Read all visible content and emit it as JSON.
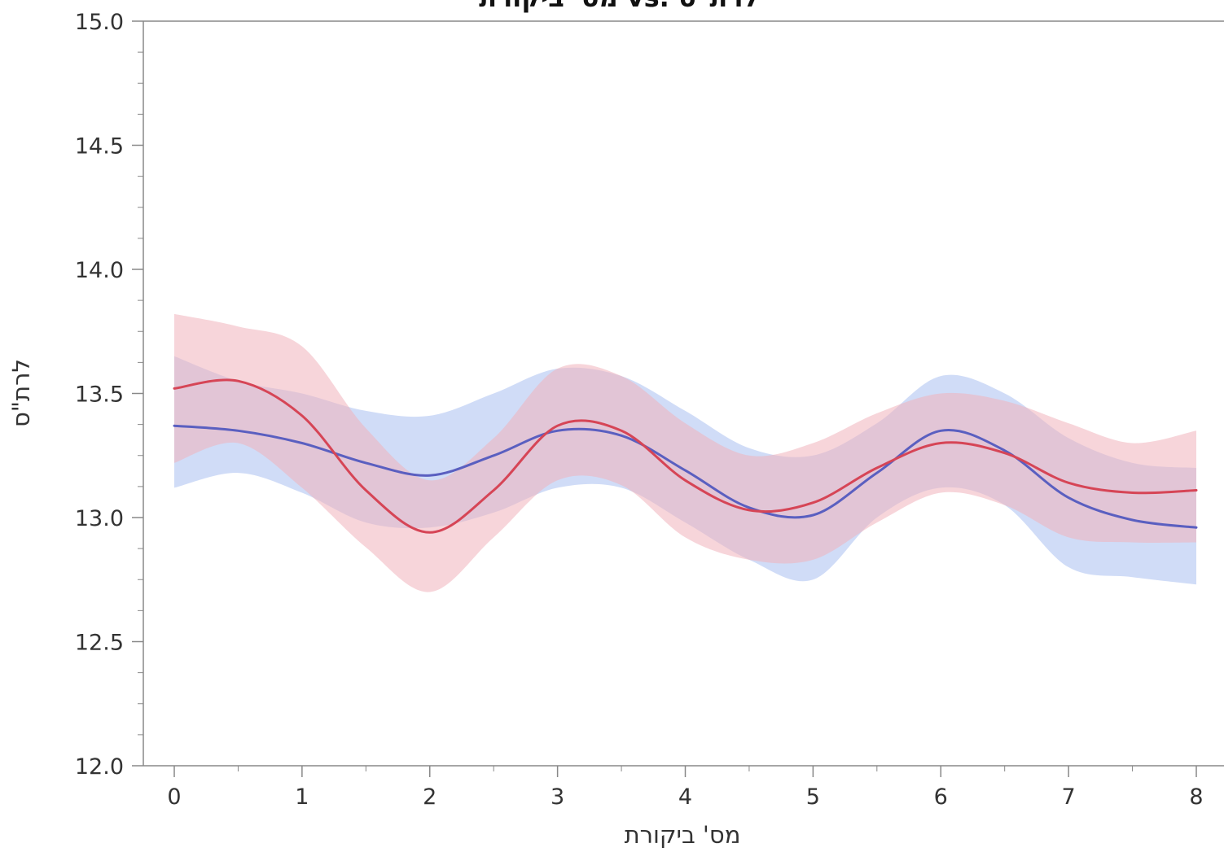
{
  "chart_data": {
    "type": "line",
    "title": "מס' ביקורת vs. לרת\"ס",
    "xlabel": "מס' ביקורת",
    "ylabel": "לרת\"ס",
    "xlim": [
      -0.25,
      8.2
    ],
    "ylim": [
      12.0,
      15.0
    ],
    "x_ticks": [
      0,
      1,
      2,
      3,
      4,
      5,
      6,
      7,
      8
    ],
    "y_ticks": [
      12.0,
      12.5,
      13.0,
      13.5,
      14.0,
      14.5,
      15.0
    ],
    "y_tick_labels": [
      "12.0",
      "12.5",
      "13.0",
      "13.5",
      "14.0",
      "14.5",
      "15.0"
    ],
    "grid": false,
    "series": [
      {
        "color": "#5a5fc0",
        "band_color": "#a9bff0",
        "x": [
          0,
          0.5,
          1,
          1.5,
          2,
          2.5,
          3,
          3.5,
          4,
          4.5,
          5,
          5.5,
          6,
          6.5,
          7,
          7.5,
          8
        ],
        "values": [
          13.37,
          13.35,
          13.3,
          13.22,
          13.17,
          13.25,
          13.35,
          13.33,
          13.19,
          13.04,
          13.01,
          13.18,
          13.35,
          13.27,
          13.08,
          12.99,
          12.96
        ],
        "lower": [
          13.12,
          13.18,
          13.1,
          12.98,
          12.96,
          13.02,
          13.12,
          13.12,
          12.98,
          12.83,
          12.75,
          13.0,
          13.12,
          13.05,
          12.8,
          12.76,
          12.73
        ],
        "upper": [
          13.65,
          13.55,
          13.5,
          13.43,
          13.41,
          13.5,
          13.6,
          13.57,
          13.43,
          13.28,
          13.25,
          13.38,
          13.57,
          13.5,
          13.32,
          13.22,
          13.2
        ]
      },
      {
        "color": "#d64556",
        "band_color": "#f0b2bb",
        "x": [
          0,
          0.5,
          1,
          1.5,
          2,
          2.5,
          3,
          3.5,
          4,
          4.5,
          5,
          5.5,
          6,
          6.5,
          7,
          7.5,
          8
        ],
        "values": [
          13.52,
          13.55,
          13.41,
          13.11,
          12.94,
          13.11,
          13.37,
          13.35,
          13.15,
          13.03,
          13.06,
          13.2,
          13.3,
          13.26,
          13.14,
          13.1,
          13.11
        ],
        "lower": [
          13.22,
          13.3,
          13.12,
          12.88,
          12.7,
          12.92,
          13.15,
          13.13,
          12.92,
          12.83,
          12.83,
          12.98,
          13.1,
          13.05,
          12.92,
          12.9,
          12.9
        ],
        "upper": [
          13.82,
          13.77,
          13.69,
          13.36,
          13.15,
          13.32,
          13.6,
          13.57,
          13.38,
          13.25,
          13.3,
          13.42,
          13.5,
          13.47,
          13.38,
          13.3,
          13.35
        ]
      }
    ]
  }
}
